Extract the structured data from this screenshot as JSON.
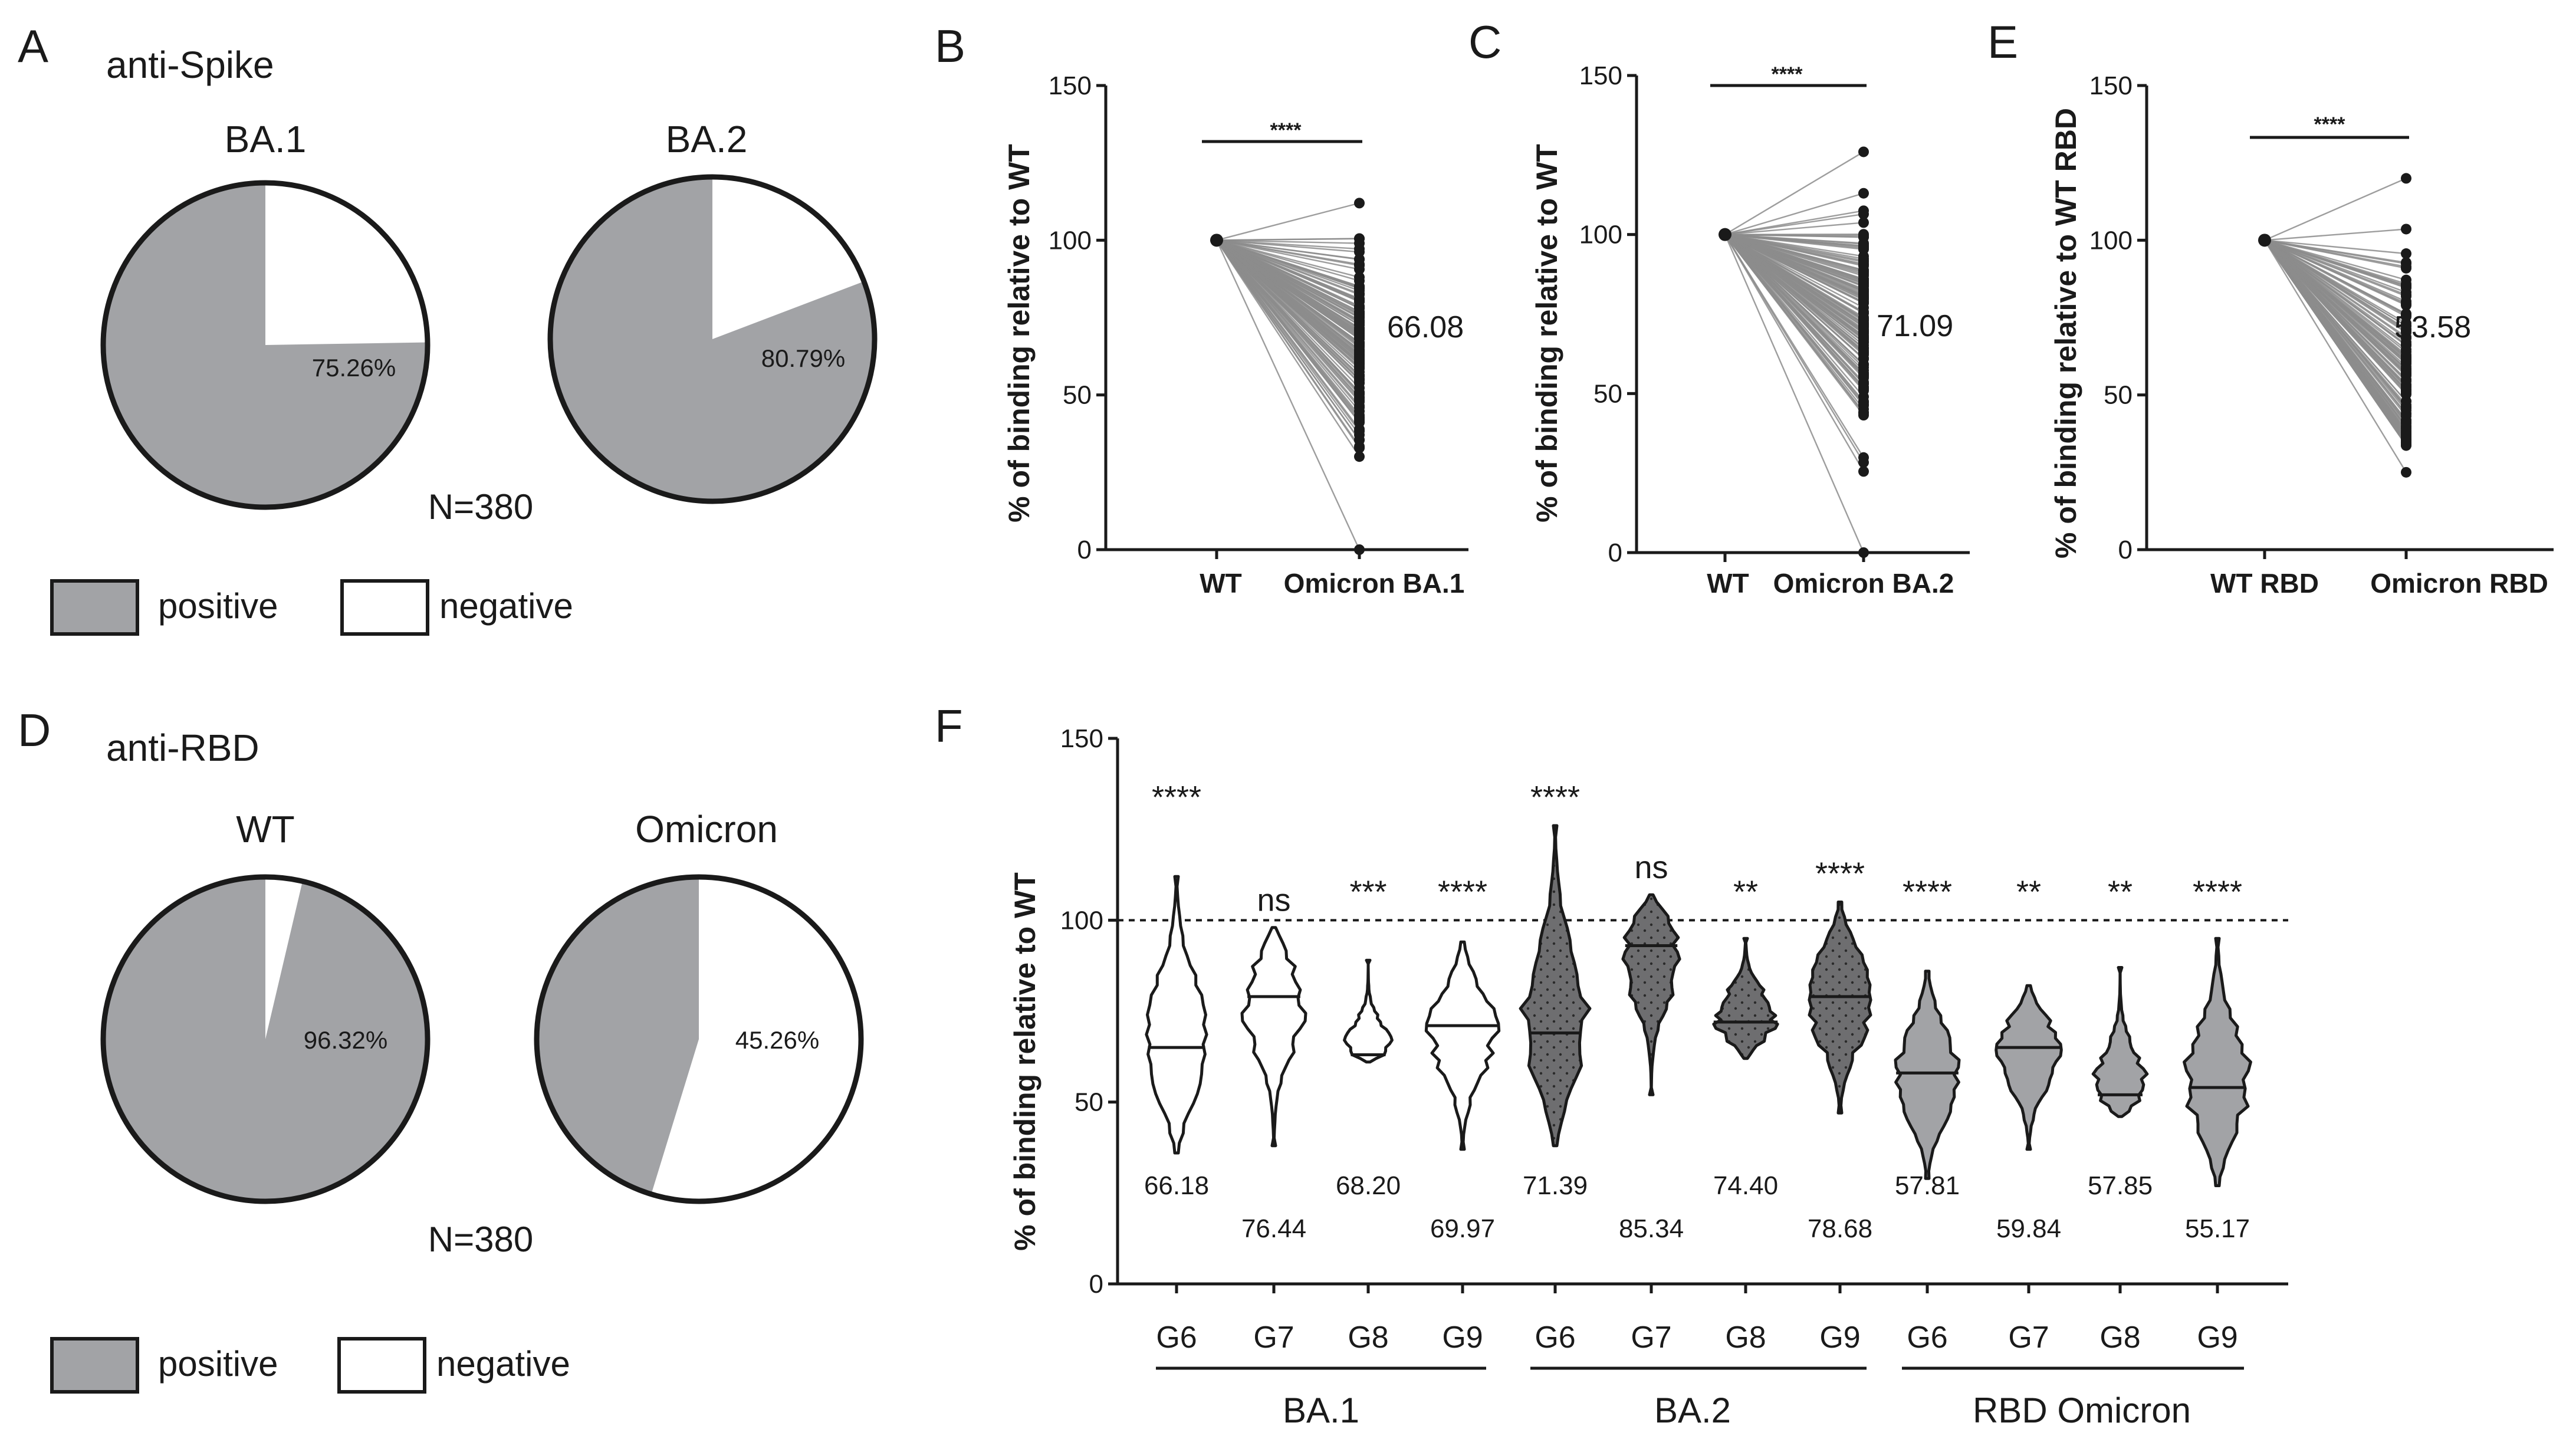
{
  "colors": {
    "gray": "#a2a3a6",
    "dark": "#6e6e70",
    "line": "#8c8c8c",
    "black": "#1a1a1a",
    "white": "#ffffff"
  },
  "panelA": {
    "letter": "A",
    "title": "anti-Spike",
    "n_label": "N=380",
    "pies": [
      {
        "name": "BA.1",
        "positive_pct": 75.26,
        "pct_label": "75.26%"
      },
      {
        "name": "BA.2",
        "positive_pct": 80.79,
        "pct_label": "80.79%"
      }
    ]
  },
  "panelD": {
    "letter": "D",
    "title": "anti-RBD",
    "n_label": "N=380",
    "pies": [
      {
        "name": "WT",
        "positive_pct": 96.32,
        "pct_label": "96.32%"
      },
      {
        "name": "Omicron",
        "positive_pct": 45.26,
        "pct_label": "45.26%"
      }
    ]
  },
  "legend": {
    "positive": "positive",
    "negative": "negative"
  },
  "chart_data": [
    {
      "id": "B",
      "type": "scatter",
      "letter": "B",
      "ylabel": "% of binding relative to WT",
      "ylim": [
        0,
        150
      ],
      "yticks": [
        0,
        50,
        100,
        150
      ],
      "categories": [
        "WT",
        "Omicron BA.1"
      ],
      "significance": "****",
      "mean_label": "66.08",
      "wt_value": 100,
      "omicron_min": 0,
      "omicron_max": 112,
      "omicron_mean": 66.08
    },
    {
      "id": "C",
      "type": "scatter",
      "letter": "C",
      "ylabel": "% of binding relative to WT",
      "ylim": [
        0,
        150
      ],
      "yticks": [
        0,
        50,
        100,
        150
      ],
      "categories": [
        "WT",
        "Omicron BA.2"
      ],
      "significance": "****",
      "mean_label": "71.09",
      "wt_value": 100,
      "omicron_min": 0,
      "omicron_max": 126,
      "omicron_mean": 71.09
    },
    {
      "id": "E",
      "type": "scatter",
      "letter": "E",
      "ylabel": "% of binding relative to WT RBD",
      "ylim": [
        0,
        150
      ],
      "yticks": [
        0,
        50,
        100,
        150
      ],
      "categories": [
        "WT RBD",
        "Omicron RBD"
      ],
      "significance": "****",
      "mean_label": "53.58",
      "wt_value": 100,
      "omicron_min": 25,
      "omicron_max": 120,
      "omicron_mean": 53.58
    },
    {
      "id": "F",
      "type": "violin",
      "letter": "F",
      "ylabel": "% of binding relative to WT",
      "ylim": [
        0,
        150
      ],
      "yticks": [
        0,
        50,
        100,
        150
      ],
      "reference_line": 100,
      "groups": [
        {
          "name": "BA.1",
          "fill": "white",
          "dotted": false
        },
        {
          "name": "BA.2",
          "fill": "dark",
          "dotted": true
        },
        {
          "name": "RBD Omicron",
          "fill": "gray",
          "dotted": false
        }
      ],
      "violins": [
        {
          "group": 0,
          "label": "G6",
          "min": 36,
          "max": 112,
          "median": 65,
          "mean_label": "66.18",
          "sig": "****"
        },
        {
          "group": 0,
          "label": "G7",
          "min": 38,
          "max": 98,
          "median": 79,
          "mean_label": "76.44",
          "sig": "ns"
        },
        {
          "group": 0,
          "label": "G8",
          "min": 61,
          "max": 89,
          "median": 63,
          "mean_label": "68.20",
          "sig": "***"
        },
        {
          "group": 0,
          "label": "G9",
          "min": 37,
          "max": 94,
          "median": 71,
          "mean_label": "69.97",
          "sig": "****"
        },
        {
          "group": 1,
          "label": "G6",
          "min": 38,
          "max": 126,
          "median": 69,
          "mean_label": "71.39",
          "sig": "****"
        },
        {
          "group": 1,
          "label": "G7",
          "min": 52,
          "max": 107,
          "median": 93,
          "mean_label": "85.34",
          "sig": "ns"
        },
        {
          "group": 1,
          "label": "G8",
          "min": 62,
          "max": 95,
          "median": 72,
          "mean_label": "74.40",
          "sig": "**"
        },
        {
          "group": 1,
          "label": "G9",
          "min": 47,
          "max": 105,
          "median": 79,
          "mean_label": "78.68",
          "sig": "****"
        },
        {
          "group": 2,
          "label": "G6",
          "min": 29,
          "max": 86,
          "median": 58,
          "mean_label": "57.81",
          "sig": "****"
        },
        {
          "group": 2,
          "label": "G7",
          "min": 37,
          "max": 82,
          "median": 65,
          "mean_label": "59.84",
          "sig": "**"
        },
        {
          "group": 2,
          "label": "G8",
          "min": 46,
          "max": 87,
          "median": 52,
          "mean_label": "57.85",
          "sig": "**"
        },
        {
          "group": 2,
          "label": "G9",
          "min": 27,
          "max": 95,
          "median": 54,
          "mean_label": "55.17",
          "sig": "****"
        }
      ]
    }
  ]
}
